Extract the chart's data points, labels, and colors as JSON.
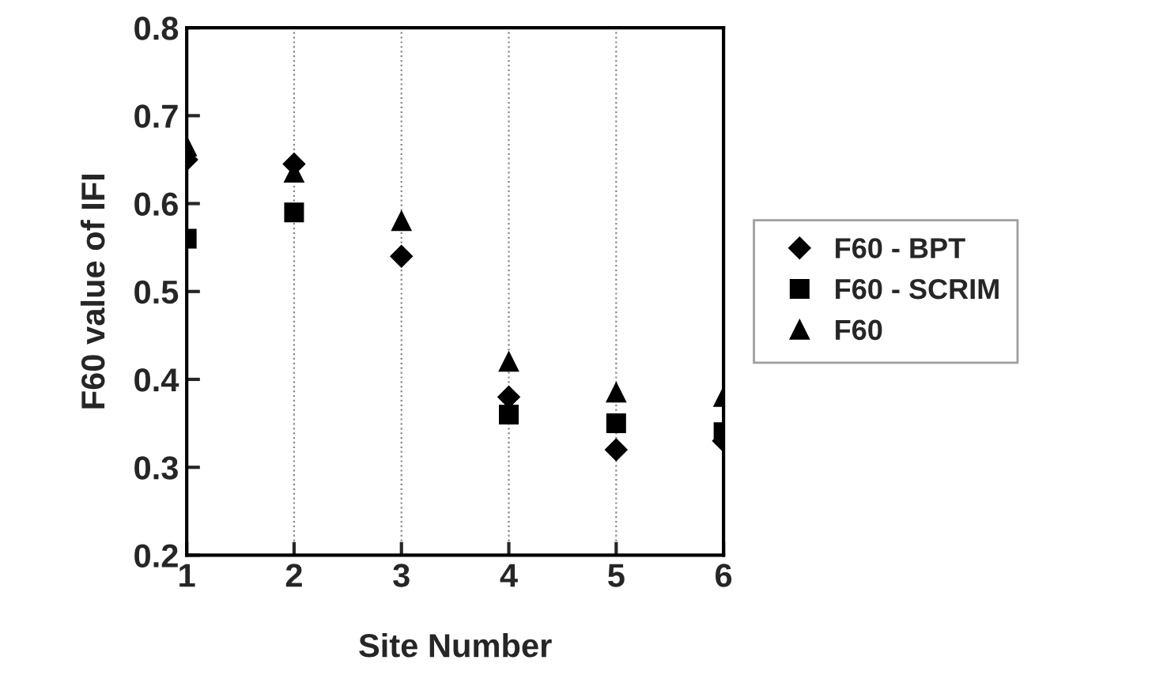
{
  "chart_data": {
    "type": "scatter",
    "xlabel": "Site Number",
    "ylabel": "F60 value of IFI",
    "x": [
      1,
      2,
      3,
      4,
      5,
      6
    ],
    "xlim": [
      1,
      6
    ],
    "xticks": [
      1,
      2,
      3,
      4,
      5,
      6
    ],
    "ylim": [
      0.2,
      0.8
    ],
    "yticks": [
      0.2,
      0.3,
      0.4,
      0.5,
      0.6,
      0.7,
      0.8
    ],
    "grid": "x",
    "legend": "right",
    "series": [
      {
        "name": "F60 - BPT",
        "color": "#000000",
        "marker": "diamond",
        "values": [
          0.65,
          0.645,
          0.54,
          0.38,
          0.32,
          0.33
        ]
      },
      {
        "name": "F60 - SCRIM",
        "color": "#000000",
        "marker": "square",
        "values": [
          0.56,
          0.59,
          null,
          0.36,
          0.35,
          0.34
        ]
      },
      {
        "name": "F60",
        "color": "#000000",
        "marker": "triangle",
        "values": [
          0.665,
          0.635,
          0.58,
          0.42,
          0.385,
          0.38
        ]
      }
    ]
  }
}
